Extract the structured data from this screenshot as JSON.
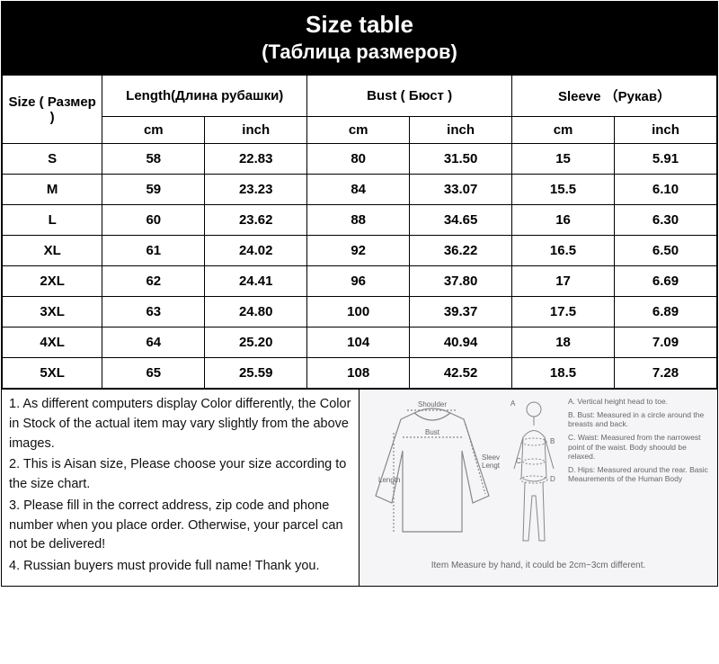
{
  "header": {
    "title": "Size table",
    "subtitle": "(Таблица размеров)"
  },
  "columns": {
    "size": "Size ( Размер )",
    "length": "Length(Длина рубашки)",
    "bust": "Bust ( Бюст )",
    "sleeve": "Sleeve （Рукав）",
    "cm": "cm",
    "inch": "inch"
  },
  "rows": [
    {
      "size": "S",
      "length_cm": "58",
      "length_in": "22.83",
      "bust_cm": "80",
      "bust_in": "31.50",
      "sleeve_cm": "15",
      "sleeve_in": "5.91"
    },
    {
      "size": "M",
      "length_cm": "59",
      "length_in": "23.23",
      "bust_cm": "84",
      "bust_in": "33.07",
      "sleeve_cm": "15.5",
      "sleeve_in": "6.10"
    },
    {
      "size": "L",
      "length_cm": "60",
      "length_in": "23.62",
      "bust_cm": "88",
      "bust_in": "34.65",
      "sleeve_cm": "16",
      "sleeve_in": "6.30"
    },
    {
      "size": "XL",
      "length_cm": "61",
      "length_in": "24.02",
      "bust_cm": "92",
      "bust_in": "36.22",
      "sleeve_cm": "16.5",
      "sleeve_in": "6.50"
    },
    {
      "size": "2XL",
      "length_cm": "62",
      "length_in": "24.41",
      "bust_cm": "96",
      "bust_in": "37.80",
      "sleeve_cm": "17",
      "sleeve_in": "6.69"
    },
    {
      "size": "3XL",
      "length_cm": "63",
      "length_in": "24.80",
      "bust_cm": "100",
      "bust_in": "39.37",
      "sleeve_cm": "17.5",
      "sleeve_in": "6.89"
    },
    {
      "size": "4XL",
      "length_cm": "64",
      "length_in": "25.20",
      "bust_cm": "104",
      "bust_in": "40.94",
      "sleeve_cm": "18",
      "sleeve_in": "7.09"
    },
    {
      "size": "5XL",
      "length_cm": "65",
      "length_in": "25.59",
      "bust_cm": "108",
      "bust_in": "42.52",
      "sleeve_cm": "18.5",
      "sleeve_in": "7.28"
    }
  ],
  "notes": [
    "1. As different computers display Color differently, the Color in Stock of the actual item may vary slightly from the above images.",
    "2. This is Aisan size, Please choose your size according to the size chart.",
    "3. Please fill in the correct address, zip code and phone number when you place order. Otherwise, your parcel can not be delivered!",
    "4. Russian buyers must provide full name! Thank you."
  ],
  "diagram": {
    "labels": {
      "shoulder": "Shoulder",
      "bust": "Bust",
      "length": "Length",
      "sleeve": "Sleeve Length"
    },
    "legend": {
      "a": "A. Vertical height head to toe.",
      "b": "B. Bust: Measured in a circle around the breasts and back.",
      "c": "C. Waist: Measured from the narrowest point of the waist. Body shoould be relaxed.",
      "d": "D. Hips: Measured around the rear. Basic Meaurements of the Human Body"
    },
    "footer": "Item Measure by hand, it could be 2cm~3cm different."
  },
  "style": {
    "header_bg": "#000000",
    "header_fg": "#ffffff",
    "border_color": "#000000",
    "diagram_bg": "#f5f5f7",
    "diagram_stroke": "#888888"
  }
}
